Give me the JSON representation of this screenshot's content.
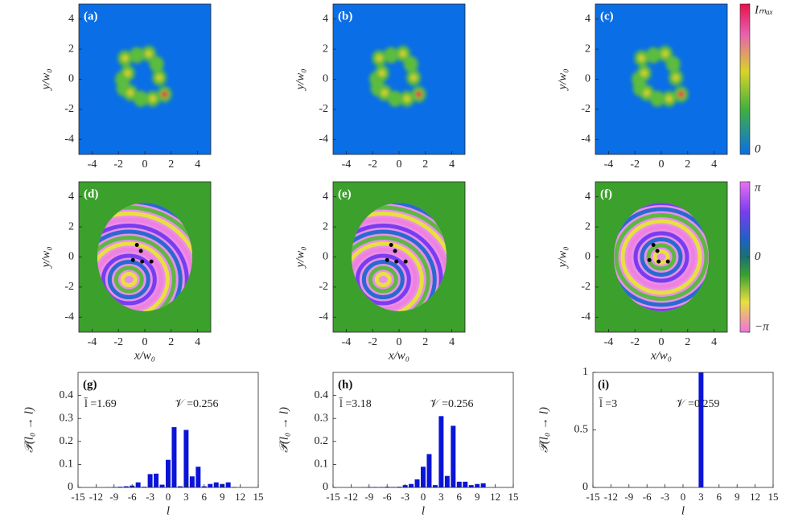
{
  "chart_data": [
    {
      "type": "intensity",
      "label": "(a)",
      "ylabel": "y/w₀",
      "xlim": [
        -5,
        5
      ],
      "ylim": [
        -5,
        5
      ],
      "xticks": [
        -4,
        -2,
        0,
        2,
        4
      ],
      "yticks": [
        -4,
        -2,
        0,
        2,
        4
      ]
    },
    {
      "type": "intensity",
      "label": "(b)",
      "ylabel": "y/w₀",
      "xlim": [
        -5,
        5
      ],
      "ylim": [
        -5,
        5
      ],
      "xticks": [
        -4,
        -2,
        0,
        2,
        4
      ],
      "yticks": [
        -4,
        -2,
        0,
        2,
        4
      ]
    },
    {
      "type": "intensity",
      "label": "(c)",
      "ylabel": "y/w₀",
      "xlim": [
        -5,
        5
      ],
      "ylim": [
        -5,
        5
      ],
      "xticks": [
        -4,
        -2,
        0,
        2,
        4
      ],
      "yticks": [
        -4,
        -2,
        0,
        2,
        4
      ],
      "colorbar": {
        "lim": [
          0,
          1
        ],
        "ticks": [
          {
            "value": 1,
            "label": "Iₘₐₓ"
          },
          0
        ]
      }
    },
    {
      "type": "phase",
      "label": "(d)",
      "xlabel": "x/w₀",
      "ylabel": "y/w₀",
      "xlim": [
        -5,
        5
      ],
      "ylim": [
        -5,
        5
      ],
      "xticks": [
        -4,
        -2,
        0,
        2,
        4
      ],
      "yticks": [
        -4,
        -2,
        0,
        2,
        4
      ]
    },
    {
      "type": "phase",
      "label": "(e)",
      "xlabel": "x/w₀",
      "ylabel": "y/w₀",
      "xlim": [
        -5,
        5
      ],
      "ylim": [
        -5,
        5
      ],
      "xticks": [
        -4,
        -2,
        0,
        2,
        4
      ],
      "yticks": [
        -4,
        -2,
        0,
        2,
        4
      ]
    },
    {
      "type": "phase",
      "label": "(f)",
      "xlabel": "x/w₀",
      "ylabel": "y/w₀",
      "xlim": [
        -5,
        5
      ],
      "ylim": [
        -5,
        5
      ],
      "xticks": [
        -4,
        -2,
        0,
        2,
        4
      ],
      "yticks": [
        -4,
        -2,
        0,
        2,
        4
      ],
      "colorbar": {
        "lim": [
          -3.14159,
          3.14159
        ],
        "ticks": [
          {
            "value": 3.14159,
            "label": "π"
          },
          0,
          {
            "value": -3.14159,
            "label": "−π"
          }
        ]
      }
    },
    {
      "type": "bar",
      "label": "(g)",
      "xlabel": "l",
      "ylabel": "𝒫(l₀ → l)",
      "annotations": [
        "l̄ =1.69",
        "𝒱 =0.256"
      ],
      "color": "#0a14d8",
      "x": [
        -10,
        -9,
        -8,
        -7,
        -6,
        -5,
        -4,
        -3,
        -2,
        -1,
        0,
        1,
        2,
        3,
        4,
        5,
        6,
        7,
        8,
        9,
        10,
        11
      ],
      "values": [
        0.001,
        0.002,
        0.003,
        0.005,
        0.008,
        0.022,
        0.003,
        0.058,
        0.06,
        0.012,
        0.12,
        0.262,
        0.005,
        0.25,
        0.048,
        0.09,
        0.005,
        0.015,
        0.022,
        0.015,
        0.022,
        0.002
      ],
      "xlim": [
        -15,
        15
      ],
      "ylim": [
        0,
        0.5
      ],
      "xticks": [
        -15,
        -12,
        -9,
        -6,
        -3,
        0,
        3,
        6,
        9,
        12,
        15
      ],
      "yticks": [
        0,
        0.1,
        0.2,
        0.3,
        0.4
      ]
    },
    {
      "type": "bar",
      "label": "(h)",
      "xlabel": "l",
      "ylabel": "𝒫(l₀ → l)",
      "annotations": [
        "l̄ =3.18",
        "𝒱 =0.256"
      ],
      "color": "#0a14d8",
      "x": [
        -10,
        -9,
        -8,
        -7,
        -6,
        -5,
        -4,
        -3,
        -2,
        -1,
        0,
        1,
        2,
        3,
        4,
        5,
        6,
        7,
        8,
        9,
        10
      ],
      "values": [
        0.001,
        0.002,
        0.002,
        0.002,
        0.003,
        0.002,
        0.003,
        0.01,
        0.015,
        0.035,
        0.09,
        0.145,
        0.01,
        0.31,
        0.05,
        0.268,
        0.025,
        0.025,
        0.01,
        0.015,
        0.018
      ],
      "xlim": [
        -15,
        15
      ],
      "ylim": [
        0,
        0.5
      ],
      "xticks": [
        -15,
        -12,
        -9,
        -6,
        -3,
        0,
        3,
        6,
        9,
        12,
        15
      ],
      "yticks": [
        0,
        0.1,
        0.2,
        0.3,
        0.4
      ]
    },
    {
      "type": "bar",
      "label": "(i)",
      "xlabel": "l",
      "ylabel": "𝒫(l₀ → l)",
      "annotations": [
        "l̄ =3",
        "𝒱 =0.259"
      ],
      "color": "#0a14d8",
      "x": [
        -9,
        -6,
        -3,
        0,
        3,
        6,
        9
      ],
      "values": [
        0.001,
        0.001,
        0.001,
        0.001,
        1,
        0.001,
        0.001
      ],
      "xlim": [
        -15,
        15
      ],
      "ylim": [
        0,
        1
      ],
      "xticks": [
        -15,
        -12,
        -9,
        -6,
        -3,
        0,
        3,
        6,
        9,
        12,
        15
      ],
      "yticks": [
        0,
        0.5,
        1
      ]
    }
  ]
}
